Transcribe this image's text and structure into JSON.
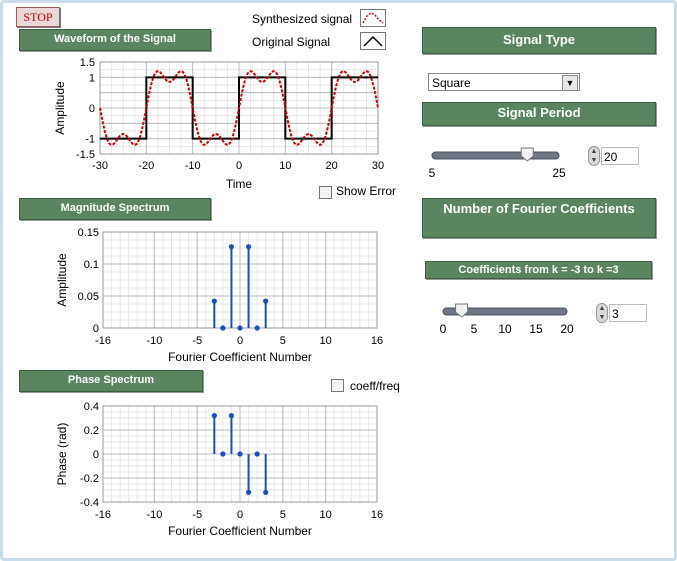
{
  "stop_button": {
    "label": "STOP"
  },
  "legend": {
    "synthesized_label": "Synthesized signal",
    "original_label": "Original Signal"
  },
  "waveform": {
    "title": "Waveform of the Signal",
    "xlabel": "Time",
    "ylabel": "Amplitude",
    "xticks": [
      "-30",
      "-20",
      "-10",
      "0",
      "10",
      "20",
      "30"
    ],
    "yticks": [
      "1.5",
      "1",
      "0",
      "-1",
      "-1.5"
    ]
  },
  "show_error": {
    "label": "Show Error",
    "checked": false
  },
  "magnitude": {
    "title": "Magnitude Spectrum",
    "xlabel": "Fourier Coefficient Number",
    "ylabel": "Amplitude",
    "xticks": [
      "-16",
      "-10",
      "-5",
      "0",
      "5",
      "10",
      "16"
    ],
    "yticks": [
      "0.15",
      "0.1",
      "0.05",
      "0"
    ]
  },
  "phase": {
    "title": "Phase Spectrum",
    "xlabel": "Fourier Coefficient Number",
    "ylabel": "Phase (rad)",
    "xticks": [
      "-16",
      "-10",
      "-5",
      "0",
      "5",
      "10",
      "16"
    ],
    "yticks": [
      "0.4",
      "0.2",
      "0",
      "-0.2",
      "-0.4"
    ]
  },
  "coeff_freq": {
    "label": "coeff/freq",
    "checked": false
  },
  "signal_type": {
    "title": "Signal Type",
    "selected": "Square"
  },
  "signal_period": {
    "title": "Signal Period",
    "min_label": "5",
    "max_label": "25",
    "value": "20",
    "value_num": 20,
    "min": 5,
    "max": 25
  },
  "fourier": {
    "title": "Number of Fourier Coefficients",
    "range_label": "Coefficients from k = -3 to k =3",
    "ticks": [
      "0",
      "5",
      "10",
      "15",
      "20"
    ],
    "value": "3",
    "value_num": 3,
    "min": 0,
    "max": 20
  },
  "colors": {
    "panel_green": "#5a8560",
    "stem_blue": "#1a4fc4",
    "synth_red": "#d40000"
  },
  "chart_data": [
    {
      "type": "line",
      "title": "Waveform of the Signal",
      "xlabel": "Time",
      "ylabel": "Amplitude",
      "xlim": [
        -30,
        30
      ],
      "ylim": [
        -1.5,
        1.5
      ],
      "grid": true,
      "series": [
        {
          "name": "Synthesized signal",
          "style": "dotted-red",
          "period": 20,
          "coefficients_k_max": 3,
          "amplitude": 1
        },
        {
          "name": "Original Signal",
          "style": "solid-black",
          "x": [
            -30,
            -20,
            -20,
            -10,
            -10,
            0,
            0,
            10,
            10,
            20,
            20,
            30
          ],
          "y": [
            -1,
            -1,
            1,
            1,
            -1,
            -1,
            1,
            1,
            -1,
            -1,
            1,
            1
          ]
        }
      ]
    },
    {
      "type": "scatter",
      "title": "Magnitude Spectrum",
      "xlabel": "Fourier Coefficient Number",
      "ylabel": "Amplitude",
      "xlim": [
        -16,
        16
      ],
      "ylim": [
        0,
        0.15
      ],
      "grid": true,
      "x": [
        -3,
        -2,
        -1,
        0,
        1,
        2,
        3
      ],
      "y": [
        0.042,
        0,
        0.127,
        0,
        0.127,
        0,
        0.042
      ]
    },
    {
      "type": "scatter",
      "title": "Phase Spectrum",
      "xlabel": "Fourier Coefficient Number",
      "ylabel": "Phase (rad)",
      "xlim": [
        -16,
        16
      ],
      "ylim": [
        -0.4,
        0.4
      ],
      "grid": true,
      "x": [
        -3,
        -2,
        -1,
        0,
        1,
        2,
        3
      ],
      "y": [
        0.32,
        0,
        0.32,
        0,
        -0.32,
        0,
        -0.32
      ]
    }
  ]
}
